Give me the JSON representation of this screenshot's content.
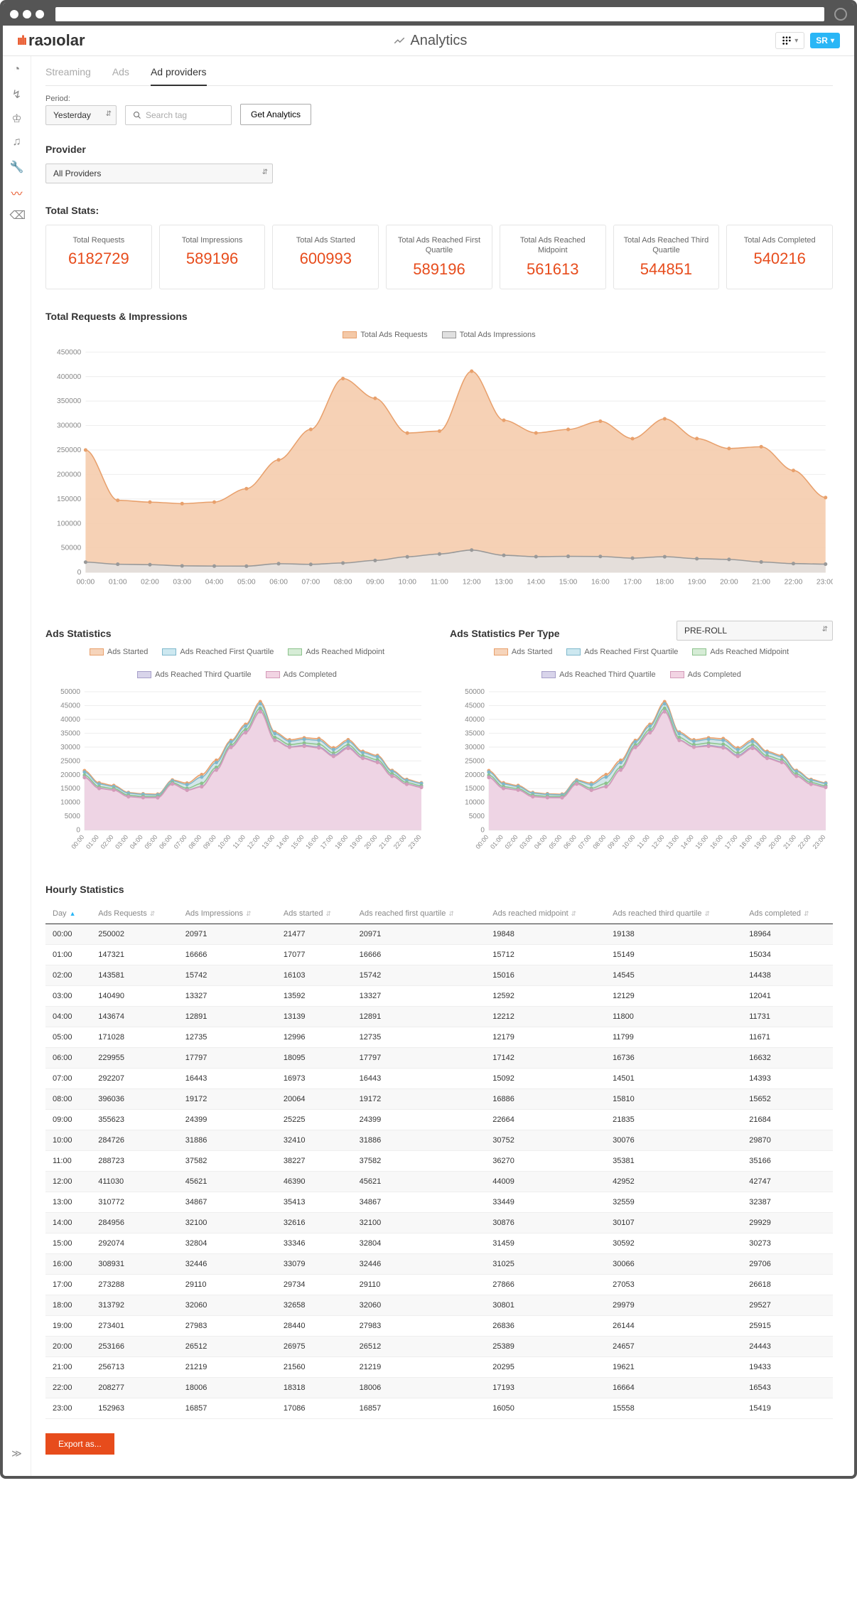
{
  "app": {
    "brand": "raᴐıolar",
    "title": "Analytics",
    "user_badge": "SR"
  },
  "tabs": [
    "Streaming",
    "Ads",
    "Ad providers"
  ],
  "active_tab": "Ad providers",
  "filters": {
    "period_label": "Period:",
    "period_value": "Yesterday",
    "search_placeholder": "Search tag",
    "get_button": "Get Analytics"
  },
  "provider": {
    "label": "Provider",
    "value": "All Providers"
  },
  "total_stats_title": "Total Stats:",
  "stats": [
    {
      "label": "Total Requests",
      "value": "6182729"
    },
    {
      "label": "Total Impressions",
      "value": "589196"
    },
    {
      "label": "Total Ads Started",
      "value": "600993"
    },
    {
      "label": "Total Ads Reached First Quartile",
      "value": "589196"
    },
    {
      "label": "Total Ads Reached Midpoint",
      "value": "561613"
    },
    {
      "label": "Total Ads Reached Third Quartile",
      "value": "544851"
    },
    {
      "label": "Total Ads Completed",
      "value": "540216"
    }
  ],
  "main_chart": {
    "title": "Total Requests & Impressions",
    "legend": [
      {
        "label": "Total Ads Requests",
        "fill": "#f4c9a8",
        "stroke": "#e8a06c"
      },
      {
        "label": "Total Ads Impressions",
        "fill": "#e0e0e0",
        "stroke": "#999999"
      }
    ],
    "x_labels": [
      "00:00",
      "01:00",
      "02:00",
      "03:00",
      "04:00",
      "05:00",
      "06:00",
      "07:00",
      "08:00",
      "09:00",
      "10:00",
      "11:00",
      "12:00",
      "13:00",
      "14:00",
      "15:00",
      "16:00",
      "17:00",
      "18:00",
      "19:00",
      "20:00",
      "21:00",
      "22:00",
      "23:00"
    ],
    "ylim": [
      0,
      450000
    ],
    "ytick_step": 50000,
    "requests": [
      250002,
      147321,
      143581,
      140490,
      143674,
      171028,
      229955,
      292207,
      396036,
      355623,
      284726,
      288723,
      411030,
      310772,
      284956,
      292074,
      308931,
      273288,
      313792,
      273401,
      253166,
      256713,
      208277,
      152963
    ],
    "impressions": [
      20971,
      16666,
      15742,
      13327,
      12891,
      12735,
      17797,
      16443,
      19172,
      24399,
      31886,
      37582,
      45621,
      34867,
      32100,
      32804,
      32446,
      29110,
      32060,
      27983,
      26512,
      21219,
      18006,
      16857
    ],
    "grid_color": "#eeeeee",
    "axis_color": "#cccccc",
    "label_color": "#888888",
    "label_fontsize": 10
  },
  "ads_stats_chart": {
    "title": "Ads Statistics",
    "legend": [
      {
        "label": "Ads Started",
        "fill": "#f6d4bb",
        "stroke": "#e8a06c"
      },
      {
        "label": "Ads Reached First Quartile",
        "fill": "#cde8f0",
        "stroke": "#7fb8cc"
      },
      {
        "label": "Ads Reached Midpoint",
        "fill": "#d6ecd6",
        "stroke": "#8cc28c"
      },
      {
        "label": "Ads Reached Third Quartile",
        "fill": "#d8d4ea",
        "stroke": "#a69fc9"
      },
      {
        "label": "Ads Completed",
        "fill": "#f2d4e3",
        "stroke": "#d49bb9"
      }
    ],
    "x_labels": [
      "00:00",
      "01:00",
      "02:00",
      "03:00",
      "04:00",
      "05:00",
      "06:00",
      "07:00",
      "08:00",
      "09:00",
      "10:00",
      "11:00",
      "12:00",
      "13:00",
      "14:00",
      "15:00",
      "16:00",
      "17:00",
      "18:00",
      "19:00",
      "20:00",
      "21:00",
      "22:00",
      "23:00"
    ],
    "ylim": [
      0,
      50000
    ],
    "ytick_step": 5000,
    "started": [
      21477,
      17077,
      16103,
      13592,
      13139,
      12996,
      18095,
      16973,
      20064,
      25225,
      32410,
      38227,
      46390,
      35413,
      32616,
      33346,
      33079,
      29734,
      32658,
      28440,
      26975,
      21560,
      18318,
      17086
    ],
    "q1": [
      20971,
      16666,
      15742,
      13327,
      12891,
      12735,
      17797,
      16443,
      19172,
      24399,
      31886,
      37582,
      45621,
      34867,
      32100,
      32804,
      32446,
      29110,
      32060,
      27983,
      26512,
      21219,
      18006,
      16857
    ],
    "midpoint": [
      19848,
      15712,
      15016,
      12592,
      12212,
      12179,
      17142,
      15092,
      16886,
      22664,
      30752,
      36270,
      44009,
      33449,
      30876,
      31459,
      31025,
      27866,
      30801,
      26836,
      25389,
      20295,
      17193,
      16050
    ],
    "q3": [
      19138,
      15149,
      14545,
      12129,
      11800,
      11799,
      16736,
      14501,
      15810,
      21835,
      30076,
      35381,
      42952,
      32559,
      30107,
      30592,
      30066,
      27053,
      29979,
      26144,
      24657,
      19621,
      16664,
      15558
    ],
    "completed": [
      18964,
      15034,
      14438,
      12041,
      11731,
      11671,
      16632,
      14393,
      15652,
      21684,
      29870,
      35166,
      42747,
      32387,
      29929,
      30273,
      29706,
      26618,
      29527,
      25915,
      24443,
      19433,
      16543,
      15419
    ]
  },
  "per_type_chart": {
    "title": "Ads Statistics Per Type",
    "type_value": "PRE-ROLL"
  },
  "hourly_title": "Hourly Statistics",
  "table_headers": [
    "Day",
    "Ads Requests",
    "Ads Impressions",
    "Ads started",
    "Ads reached first quartile",
    "Ads reached midpoint",
    "Ads reached third quartile",
    "Ads completed"
  ],
  "table_rows": [
    [
      "00:00",
      "250002",
      "20971",
      "21477",
      "20971",
      "19848",
      "19138",
      "18964"
    ],
    [
      "01:00",
      "147321",
      "16666",
      "17077",
      "16666",
      "15712",
      "15149",
      "15034"
    ],
    [
      "02:00",
      "143581",
      "15742",
      "16103",
      "15742",
      "15016",
      "14545",
      "14438"
    ],
    [
      "03:00",
      "140490",
      "13327",
      "13592",
      "13327",
      "12592",
      "12129",
      "12041"
    ],
    [
      "04:00",
      "143674",
      "12891",
      "13139",
      "12891",
      "12212",
      "11800",
      "11731"
    ],
    [
      "05:00",
      "171028",
      "12735",
      "12996",
      "12735",
      "12179",
      "11799",
      "11671"
    ],
    [
      "06:00",
      "229955",
      "17797",
      "18095",
      "17797",
      "17142",
      "16736",
      "16632"
    ],
    [
      "07:00",
      "292207",
      "16443",
      "16973",
      "16443",
      "15092",
      "14501",
      "14393"
    ],
    [
      "08:00",
      "396036",
      "19172",
      "20064",
      "19172",
      "16886",
      "15810",
      "15652"
    ],
    [
      "09:00",
      "355623",
      "24399",
      "25225",
      "24399",
      "22664",
      "21835",
      "21684"
    ],
    [
      "10:00",
      "284726",
      "31886",
      "32410",
      "31886",
      "30752",
      "30076",
      "29870"
    ],
    [
      "11:00",
      "288723",
      "37582",
      "38227",
      "37582",
      "36270",
      "35381",
      "35166"
    ],
    [
      "12:00",
      "411030",
      "45621",
      "46390",
      "45621",
      "44009",
      "42952",
      "42747"
    ],
    [
      "13:00",
      "310772",
      "34867",
      "35413",
      "34867",
      "33449",
      "32559",
      "32387"
    ],
    [
      "14:00",
      "284956",
      "32100",
      "32616",
      "32100",
      "30876",
      "30107",
      "29929"
    ],
    [
      "15:00",
      "292074",
      "32804",
      "33346",
      "32804",
      "31459",
      "30592",
      "30273"
    ],
    [
      "16:00",
      "308931",
      "32446",
      "33079",
      "32446",
      "31025",
      "30066",
      "29706"
    ],
    [
      "17:00",
      "273288",
      "29110",
      "29734",
      "29110",
      "27866",
      "27053",
      "26618"
    ],
    [
      "18:00",
      "313792",
      "32060",
      "32658",
      "32060",
      "30801",
      "29979",
      "29527"
    ],
    [
      "19:00",
      "273401",
      "27983",
      "28440",
      "27983",
      "26836",
      "26144",
      "25915"
    ],
    [
      "20:00",
      "253166",
      "26512",
      "26975",
      "26512",
      "25389",
      "24657",
      "24443"
    ],
    [
      "21:00",
      "256713",
      "21219",
      "21560",
      "21219",
      "20295",
      "19621",
      "19433"
    ],
    [
      "22:00",
      "208277",
      "18006",
      "18318",
      "18006",
      "17193",
      "16664",
      "16543"
    ],
    [
      "23:00",
      "152963",
      "16857",
      "17086",
      "16857",
      "16050",
      "15558",
      "15419"
    ]
  ],
  "export_label": "Export as..."
}
